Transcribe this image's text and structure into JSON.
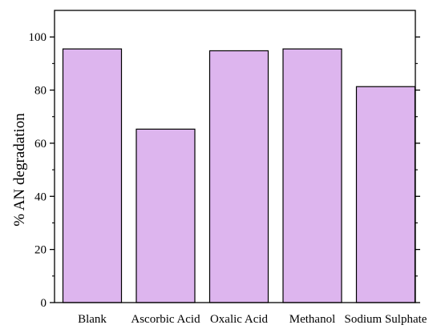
{
  "chart_data": {
    "type": "bar",
    "categories": [
      "Blank",
      "Ascorbic Acid",
      "Oxalic Acid",
      "Methanol",
      "Sodium Sulphate"
    ],
    "values": [
      95.5,
      65.3,
      94.8,
      95.5,
      81.3
    ],
    "title": "",
    "xlabel": "",
    "ylabel": "% AN degradation",
    "ylim": [
      0,
      110
    ],
    "yticks": [
      0,
      20,
      40,
      60,
      80,
      100
    ],
    "grid": false,
    "bar_color": "#ddb5ee",
    "bar_edge_color": "#000000"
  }
}
